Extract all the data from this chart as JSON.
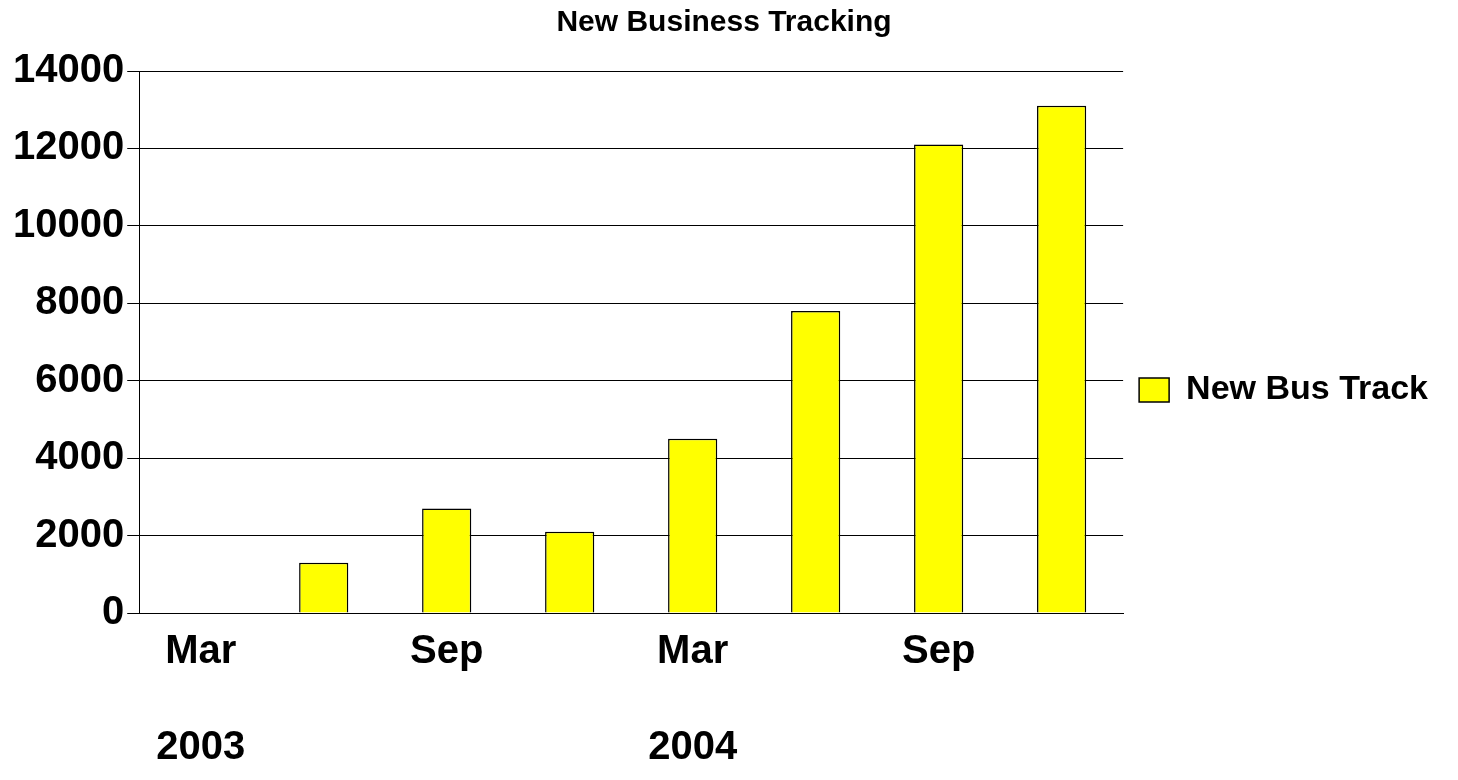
{
  "chart_data": {
    "type": "bar",
    "title": "New Business Tracking",
    "categories": [
      "Mar\n\n2003",
      null,
      "Sep",
      null,
      "Mar\n\n2004",
      null,
      "Sep",
      null
    ],
    "series": [
      {
        "name": "New Bus Track",
        "color": "#ffff00",
        "values": [
          0,
          1300,
          2700,
          2100,
          4500,
          7800,
          12100,
          13100
        ]
      }
    ],
    "ylim": [
      0,
      14000
    ],
    "yticks": [
      0,
      2000,
      4000,
      6000,
      8000,
      10000,
      12000,
      14000
    ],
    "grid": "y",
    "legend": "right"
  }
}
